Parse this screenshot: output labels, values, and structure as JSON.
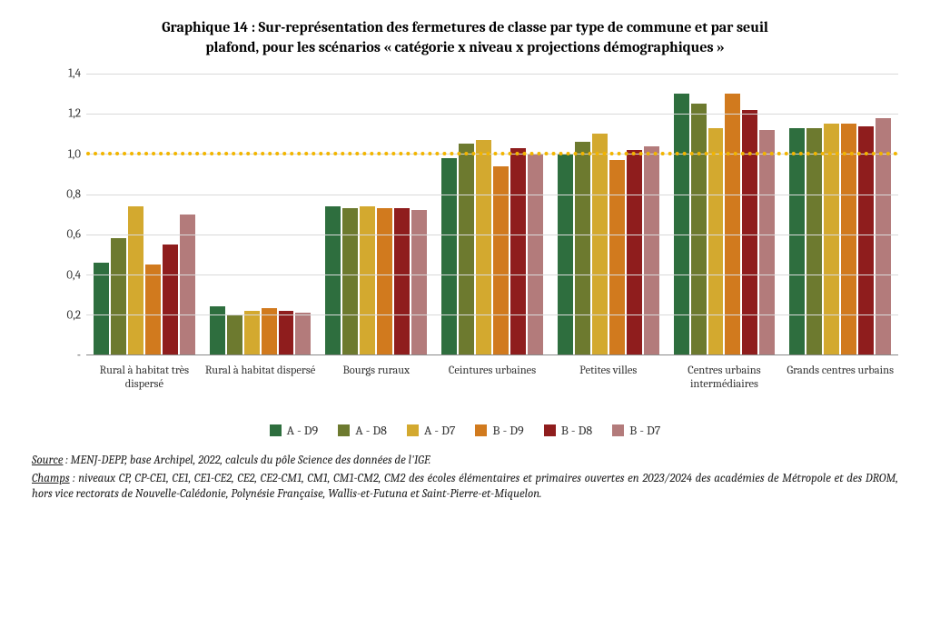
{
  "title_line1": "Graphique 14 : Sur-représentation des fermetures de classe par type de commune et par seuil",
  "title_line2": "plafond, pour les scénarios « catégorie x niveau x projections démographiques »",
  "chart": {
    "type": "bar",
    "ylim": [
      0,
      1.4
    ],
    "yticks": [
      0,
      0.2,
      0.4,
      0.6,
      0.8,
      1.0,
      1.2,
      1.4
    ],
    "ytick_labels": [
      "-",
      "0,2",
      "0,4",
      "0,6",
      "0,8",
      "1,0",
      "1,2",
      "1,4"
    ],
    "reference_line": {
      "value": 1.0,
      "color": "#f2b500"
    },
    "grid_color": "#d9d9d9",
    "background_color": "#ffffff",
    "label_fontsize": 13,
    "categories": [
      "Rural à habitat très dispersé",
      "Rural à habitat dispersé",
      "Bourgs ruraux",
      "Ceintures urbaines",
      "Petites villes",
      "Centres urbains intermédiaires",
      "Grands centres urbains"
    ],
    "series": [
      {
        "name": "A - D9",
        "color": "#2e6e3e"
      },
      {
        "name": "A - D8",
        "color": "#6d7a2f"
      },
      {
        "name": "A - D7",
        "color": "#d3a92f"
      },
      {
        "name": "B - D9",
        "color": "#d17a1e"
      },
      {
        "name": "B - D8",
        "color": "#8f1d1d"
      },
      {
        "name": "B - D7",
        "color": "#b37b7b"
      }
    ],
    "values": [
      [
        0.46,
        0.58,
        0.74,
        0.45,
        0.55,
        0.7
      ],
      [
        0.24,
        0.2,
        0.22,
        0.23,
        0.22,
        0.21
      ],
      [
        0.74,
        0.73,
        0.74,
        0.73,
        0.73,
        0.72
      ],
      [
        0.98,
        1.05,
        1.07,
        0.94,
        1.03,
        1.0
      ],
      [
        1.0,
        1.06,
        1.1,
        0.97,
        1.02,
        1.04
      ],
      [
        1.3,
        1.25,
        1.13,
        1.3,
        1.22,
        1.12
      ],
      [
        1.13,
        1.13,
        1.15,
        1.15,
        1.14,
        1.18
      ]
    ]
  },
  "source_label": "Source",
  "source_text": " : MENJ-DEPP, base Archipel, 2022, calculs du pôle Science des données de l'IGF.",
  "champs_label": "Champs",
  "champs_text": " : niveaux CP, CP-CE1, CE1, CE1-CE2, CE2, CE2-CM1, CM1, CM1-CM2, CM2 des écoles élémentaires et primaires ouvertes en 2023/2024 des académies de Métropole et des DROM, hors vice rectorats de Nouvelle-Calédonie, Polynésie Française, Wallis-et-Futuna et Saint-Pierre-et-Miquelon."
}
